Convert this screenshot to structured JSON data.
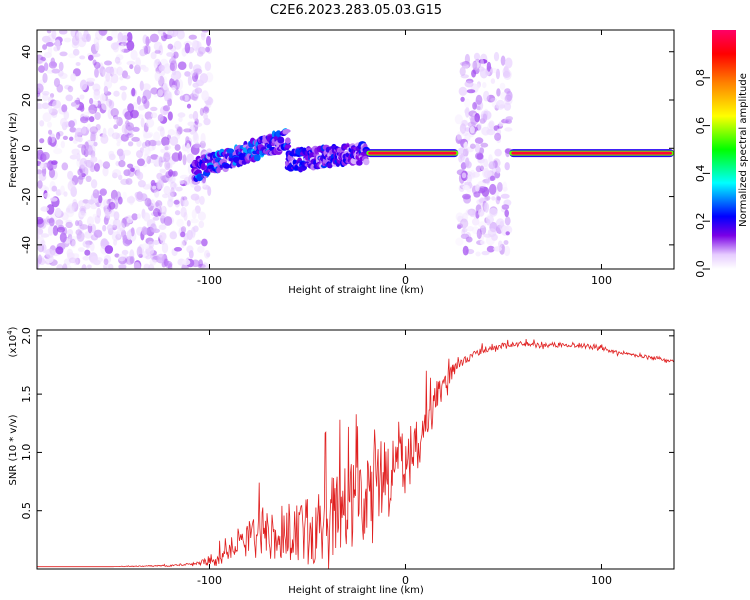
{
  "figure": {
    "title": "C2E6.2023.283.05.03.G15"
  },
  "chart_data": [
    {
      "type": "heatmap",
      "xlabel": "Height of straight line (km)",
      "ylabel": "Frequency (Hz)",
      "xlim": [
        -188,
        137
      ],
      "ylim": [
        -50,
        49
      ],
      "x_ticks": [
        -100,
        0,
        100
      ],
      "x_tick_labels": [
        "-100",
        "0",
        "100"
      ],
      "y_ticks": [
        -40,
        -20,
        0,
        20,
        40
      ],
      "y_tick_labels": [
        "-40",
        "-20",
        "0",
        "20",
        "40"
      ],
      "colorbar": {
        "label": "Normalized spectral amplitude",
        "range": [
          0,
          1
        ],
        "ticks": [
          0.0,
          0.2,
          0.4,
          0.6,
          0.8
        ],
        "tick_labels": [
          "0.0",
          "0.2",
          "0.4",
          "0.6",
          "0.8"
        ],
        "colormap": [
          "#ffffff",
          "#e6ccff",
          "#7a00e6",
          "#0000ff",
          "#00ffff",
          "#00ff00",
          "#ffff00",
          "#ff8000",
          "#ff0000",
          "#ff0066"
        ]
      },
      "features": [
        {
          "region": "scattered noise",
          "x_range": [
            -188,
            -100
          ],
          "freq_range": [
            -50,
            49
          ],
          "amplitude": 0.05
        },
        {
          "region": "rising trace",
          "x_range": [
            -108,
            -60
          ],
          "freq_start": -9,
          "freq_end": 4,
          "amplitude": 0.35
        },
        {
          "region": "settling trace",
          "x_range": [
            -60,
            -20
          ],
          "freq_start": -5,
          "freq_end": -2,
          "amplitude": 0.3
        },
        {
          "region": "stable line",
          "x_range": [
            -20,
            27
          ],
          "freq": -2,
          "amplitude": 0.95
        },
        {
          "region": "broadband bursts",
          "x_range": [
            27,
            53
          ],
          "freq_range": [
            -45,
            38
          ],
          "amplitude": 0.1
        },
        {
          "region": "stable line",
          "x_range": [
            53,
            137
          ],
          "freq": -2,
          "amplitude": 0.95
        }
      ]
    },
    {
      "type": "line",
      "xlabel": "Height of straight line (km)",
      "ylabel": "SNR (10 * v/v)",
      "multiplier_label": "(x10",
      "multiplier_exp": "4",
      "multiplier_close": ")",
      "xlim": [
        -188,
        137
      ],
      "ylim": [
        0,
        2.05
      ],
      "x_ticks": [
        -100,
        0,
        100
      ],
      "x_tick_labels": [
        "-100",
        "0",
        "100"
      ],
      "y_ticks": [
        0.5,
        1.0,
        1.5,
        2.0
      ],
      "y_tick_labels": [
        "0.5",
        "1.0",
        "1.5",
        "2.0"
      ],
      "series": [
        {
          "color": "#e02020",
          "x": [
            -188,
            -150,
            -120,
            -105,
            -95,
            -88,
            -80,
            -70,
            -60,
            -50,
            -40,
            -30,
            -25,
            -20,
            -15,
            -10,
            -5,
            0,
            5,
            10,
            15,
            20,
            25,
            30,
            40,
            50,
            60,
            70,
            80,
            90,
            100,
            105,
            110,
            120,
            130,
            137
          ],
          "values": [
            0.02,
            0.02,
            0.03,
            0.05,
            0.12,
            0.25,
            0.3,
            0.32,
            0.35,
            0.38,
            0.45,
            0.6,
            0.62,
            0.7,
            0.8,
            0.85,
            0.9,
            0.95,
            1.05,
            1.2,
            1.45,
            1.6,
            1.72,
            1.8,
            1.88,
            1.92,
            1.93,
            1.92,
            1.93,
            1.92,
            1.9,
            1.86,
            1.85,
            1.83,
            1.8,
            1.78
          ],
          "noise": [
            0,
            0,
            0.01,
            0.02,
            0.1,
            0.2,
            0.25,
            0.3,
            0.35,
            0.45,
            0.5,
            0.55,
            0.55,
            0.55,
            0.5,
            0.45,
            0.4,
            0.4,
            0.35,
            0.3,
            0.25,
            0.15,
            0.08,
            0.05,
            0.04,
            0.03,
            0.03,
            0.03,
            0.03,
            0.03,
            0.04,
            0.03,
            0.02,
            0.02,
            0.02,
            0.02
          ]
        }
      ]
    }
  ]
}
